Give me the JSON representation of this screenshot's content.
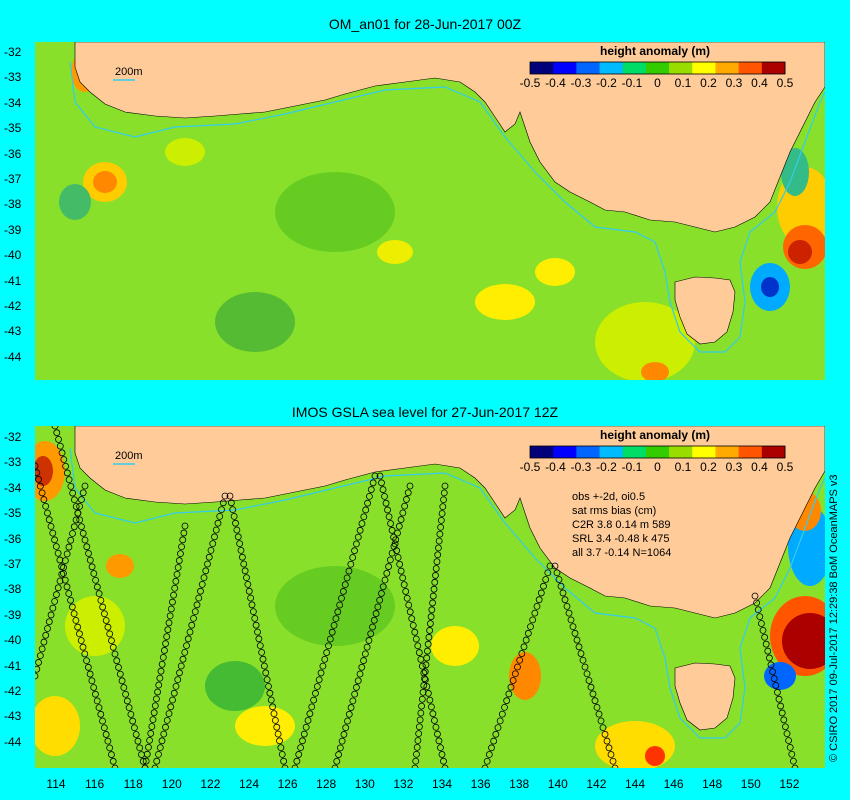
{
  "panels": [
    {
      "title": "OM_an01 for 28-Jun-2017 00Z",
      "legend_title": "height anomaly (m)",
      "legend_ticks": [
        "-0.5",
        "-0.4",
        "-0.3",
        "-0.2",
        "-0.1",
        "0",
        "0.1",
        "0.2",
        "0.3",
        "0.4",
        "0.5"
      ],
      "isobath_label": "200m"
    },
    {
      "title": "IMOS GSLA sea level  for 27-Jun-2017 12Z",
      "legend_title": "height anomaly (m)",
      "legend_ticks": [
        "-0.5",
        "-0.4",
        "-0.3",
        "-0.2",
        "-0.1",
        "0",
        "0.1",
        "0.2",
        "0.3",
        "0.4",
        "0.5"
      ],
      "isobath_label": "200m",
      "stats_lines": [
        "obs +-2d, oi0.5",
        "sat rms bias (cm)",
        "C2R   3.8  0.14  m 589",
        "SRL   3.4  -0.48  k 475",
        "all   3.7  -0.14  N=1064"
      ]
    }
  ],
  "y_axis_labels": [
    "-32",
    "-33",
    "-34",
    "-35",
    "-36",
    "-37",
    "-38",
    "-39",
    "-40",
    "-41",
    "-42",
    "-43",
    "-44"
  ],
  "x_axis_labels": [
    "114",
    "116",
    "118",
    "120",
    "122",
    "124",
    "126",
    "128",
    "130",
    "132",
    "134",
    "136",
    "138",
    "140",
    "142",
    "144",
    "146",
    "148",
    "150",
    "152"
  ],
  "credit": "© CSIRO 2017  09-Jul-2017 12:29:38 BoM OceanMAPS v3",
  "colors": {
    "page_background": "#00ffff",
    "land": "#ffcc99",
    "ocean_base": "#88e02a",
    "isobath": "#33ccee",
    "colorbar": [
      "#00007a",
      "#0000ff",
      "#0066ff",
      "#00bbff",
      "#00dd66",
      "#33cc00",
      "#99dd00",
      "#ffff00",
      "#ffaa00",
      "#ff5500",
      "#aa0000"
    ]
  }
}
